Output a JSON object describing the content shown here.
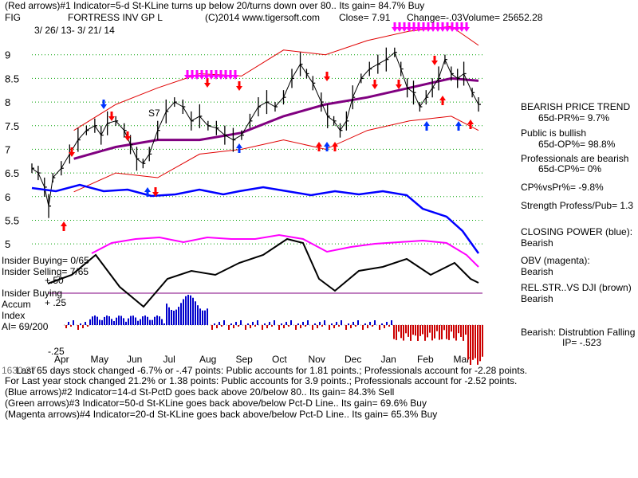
{
  "header": {
    "red_arrows_line": "(Red arrows)#1 Indicator=5-d St-KLine turns up below 20/turns down over 80.. Its gain= 84.7% Buy",
    "symbol": "FIG",
    "company": "FORTRESS INV GP L",
    "copyright": "(C)2014 www.tigersoft.com",
    "close": "Close=  7.91",
    "change": "Change=-.03",
    "volume": "Volume= 25652.28",
    "date_range": "3/ 26/ 13-  3/ 21/ 14"
  },
  "chart_labels": {
    "s7": "S7",
    "insider_buying_ratio": "Insider Buying=  0/65",
    "insider_selling_ratio": "Insider Selling= 7/65",
    "plus50": "+.50",
    "insider_buying": "Insider Buying",
    "accum": "Accum",
    "index": "Index",
    "ai": "AI= 69/200",
    "plus25": "+ .25",
    "minus25": "-.25"
  },
  "sidebar": {
    "trend_title": "BEARISH PRICE TREND",
    "pr": "65d-PR%= 9.7%",
    "public": "Public is bullish",
    "op": "65d-OP%= 98.8%",
    "professionals": "Professionals are bearish",
    "cp": "65d-CP%= 0%",
    "cpvspr": "CP%vsPr%= -9.8%",
    "strength": "Strength Profess/Pub= 1.3",
    "closing_power": "CLOSING POWER (blue):",
    "closing_power_val": "Bearish",
    "obv": "OBV (magenta):",
    "obv_val": "Bearish",
    "relstr": "REL.STR..VS DJI (brown)",
    "relstr_val": "Bearish",
    "distribution": "Bearish: Distrubtion Falling",
    "ip": "IP= -.523"
  },
  "footer": {
    "line1_prefix": "1630.27",
    "line1": "Last 65 days stock changed -6.7% or -.47 points:  Public accounts for  1.81 points.;  Professionals account for -2.28 points.",
    "line2": "For Last year stock changed  21.2% or 1.38 points:  Public accounts for  3.9 points.;  Professionals account for -2.52 points.",
    "line3": "(Blue arrows)#2 Indicator=14-d St-PctD goes back above 20/below 80.. Its gain= 84.3% Sell",
    "line4": "(Green arrows)#3 Indicator=50-d St-KLine goes back above/below Pct-D Line.. Its gain= 69.6% Buy",
    "line5": "(Magenta arrows)#4 Indicator=20-d St-KLine goes back above/below Pct-D Line.. Its gain= 65.3% Buy"
  },
  "colors": {
    "price": "#000000",
    "bands": "#e00000",
    "ma": "#800080",
    "closing_power": "#0000ff",
    "obv": "#ff00ff",
    "relstr": "#000000",
    "accum_pos": "#0000cc",
    "accum_neg": "#cc0000",
    "grid": "#00a000",
    "arrow_red": "#ff0000",
    "arrow_blue": "#0033ff",
    "arrow_magenta": "#ff00ff"
  },
  "chart_data": {
    "type": "line",
    "x_ticks": [
      "Apr",
      "May",
      "Jun",
      "Jul",
      "Aug",
      "Sep",
      "Oct",
      "Nov",
      "Dec",
      "Jan",
      "Feb",
      "Mar"
    ],
    "y_ticks": [
      9,
      8.5,
      8,
      7.5,
      7,
      6.5,
      6,
      5.5,
      5
    ],
    "ylim": [
      4.8,
      9.4
    ],
    "series": [
      {
        "key": "price",
        "values": [
          [
            0,
            6.6
          ],
          [
            3,
            6.5
          ],
          [
            6,
            6.2
          ],
          [
            8,
            5.8
          ],
          [
            10,
            6.4
          ],
          [
            14,
            6.6
          ],
          [
            18,
            6.9
          ],
          [
            22,
            7.2
          ],
          [
            26,
            7.4
          ],
          [
            30,
            7.5
          ],
          [
            33,
            7.3
          ],
          [
            36,
            7.55
          ],
          [
            40,
            7.6
          ],
          [
            44,
            7.4
          ],
          [
            47,
            7.1
          ],
          [
            50,
            6.8
          ],
          [
            53,
            6.7
          ],
          [
            56,
            6.9
          ],
          [
            60,
            7.4
          ],
          [
            64,
            7.8
          ],
          [
            68,
            8.0
          ],
          [
            72,
            7.9
          ],
          [
            76,
            7.6
          ],
          [
            80,
            7.7
          ],
          [
            84,
            7.5
          ],
          [
            88,
            7.45
          ],
          [
            92,
            7.3
          ],
          [
            96,
            7.2
          ],
          [
            100,
            7.3
          ],
          [
            104,
            7.6
          ],
          [
            108,
            7.9
          ],
          [
            112,
            8.0
          ],
          [
            116,
            7.9
          ],
          [
            120,
            8.1
          ],
          [
            124,
            8.5
          ],
          [
            128,
            8.8
          ],
          [
            131,
            8.6
          ],
          [
            134,
            8.4
          ],
          [
            138,
            8.0
          ],
          [
            141,
            7.7
          ],
          [
            144,
            7.6
          ],
          [
            147,
            7.4
          ],
          [
            150,
            7.6
          ],
          [
            153,
            8.1
          ],
          [
            157,
            8.5
          ],
          [
            161,
            8.7
          ],
          [
            165,
            8.8
          ],
          [
            169,
            8.9
          ],
          [
            173,
            9.05
          ],
          [
            176,
            8.7
          ],
          [
            179,
            8.3
          ],
          [
            182,
            8.2
          ],
          [
            185,
            7.9
          ],
          [
            188,
            8.1
          ],
          [
            191,
            8.3
          ],
          [
            194,
            8.5
          ],
          [
            197,
            8.9
          ],
          [
            200,
            8.6
          ],
          [
            203,
            8.5
          ],
          [
            206,
            8.6
          ],
          [
            210,
            8.2
          ],
          [
            213,
            7.95
          ]
        ]
      },
      {
        "key": "ma",
        "values": [
          [
            20,
            6.8
          ],
          [
            40,
            7.05
          ],
          [
            60,
            7.2
          ],
          [
            80,
            7.2
          ],
          [
            100,
            7.35
          ],
          [
            120,
            7.7
          ],
          [
            140,
            7.95
          ],
          [
            160,
            8.1
          ],
          [
            180,
            8.3
          ],
          [
            200,
            8.5
          ],
          [
            213,
            8.45
          ]
        ]
      },
      {
        "key": "upper_band",
        "values": [
          [
            20,
            7.4
          ],
          [
            40,
            7.95
          ],
          [
            60,
            8.3
          ],
          [
            80,
            8.6
          ],
          [
            100,
            8.55
          ],
          [
            120,
            9.1
          ],
          [
            140,
            9.0
          ],
          [
            160,
            9.3
          ],
          [
            180,
            9.5
          ],
          [
            200,
            9.6
          ],
          [
            213,
            9.2
          ]
        ]
      },
      {
        "key": "lower_band",
        "values": [
          [
            20,
            6.1
          ],
          [
            40,
            6.5
          ],
          [
            60,
            6.4
          ],
          [
            80,
            6.9
          ],
          [
            100,
            7.0
          ],
          [
            120,
            7.2
          ],
          [
            140,
            7.0
          ],
          [
            160,
            7.4
          ],
          [
            180,
            7.6
          ],
          [
            200,
            7.7
          ],
          [
            213,
            7.4
          ]
        ]
      }
    ]
  }
}
